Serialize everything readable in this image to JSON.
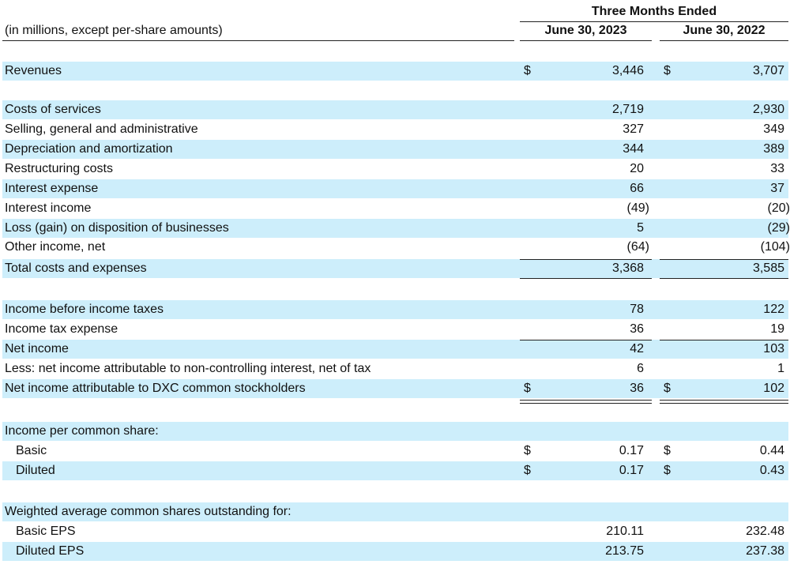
{
  "header": {
    "note": "(in millions, except per-share amounts)",
    "period": "Three Months Ended",
    "columns": [
      "June 30, 2023",
      "June 30, 2022"
    ]
  },
  "rows": [
    {
      "label": "Revenues",
      "currency": [
        "$",
        "$"
      ],
      "values": [
        "3,446",
        "3,707"
      ]
    },
    {
      "label": "Costs of services",
      "values": [
        "2,719",
        "2,930"
      ]
    },
    {
      "label": "Selling, general and administrative",
      "values": [
        "327",
        "349"
      ]
    },
    {
      "label": "Depreciation and amortization",
      "values": [
        "344",
        "389"
      ]
    },
    {
      "label": "Restructuring costs",
      "values": [
        "20",
        "33"
      ]
    },
    {
      "label": "Interest expense",
      "values": [
        "66",
        "37"
      ]
    },
    {
      "label": "Interest income",
      "values": [
        "(49)",
        "(20)"
      ]
    },
    {
      "label": "Loss (gain) on disposition of businesses",
      "values": [
        "5",
        "(29)"
      ]
    },
    {
      "label": "Other income, net",
      "values": [
        "(64)",
        "(104)"
      ]
    },
    {
      "label": "Total costs and expenses",
      "values": [
        "3,368",
        "3,585"
      ]
    },
    {
      "label": "Income before income taxes",
      "values": [
        "78",
        "122"
      ]
    },
    {
      "label": "Income tax expense",
      "values": [
        "36",
        "19"
      ]
    },
    {
      "label": "Net income",
      "values": [
        "42",
        "103"
      ]
    },
    {
      "label": "Less: net income attributable to non-controlling interest, net of tax",
      "values": [
        "6",
        "1"
      ]
    },
    {
      "label": "Net income attributable to DXC common stockholders",
      "currency": [
        "$",
        "$"
      ],
      "values": [
        "36",
        "102"
      ]
    },
    {
      "label": "Income per common share:"
    },
    {
      "label": "Basic",
      "currency": [
        "$",
        "$"
      ],
      "values": [
        "0.17",
        "0.44"
      ]
    },
    {
      "label": "Diluted",
      "currency": [
        "$",
        "$"
      ],
      "values": [
        "0.17",
        "0.43"
      ]
    },
    {
      "label": "Weighted average common shares outstanding for:"
    },
    {
      "label": "Basic EPS",
      "values": [
        "210.11",
        "232.48"
      ]
    },
    {
      "label": "Diluted EPS",
      "values": [
        "213.75",
        "237.38"
      ]
    }
  ]
}
